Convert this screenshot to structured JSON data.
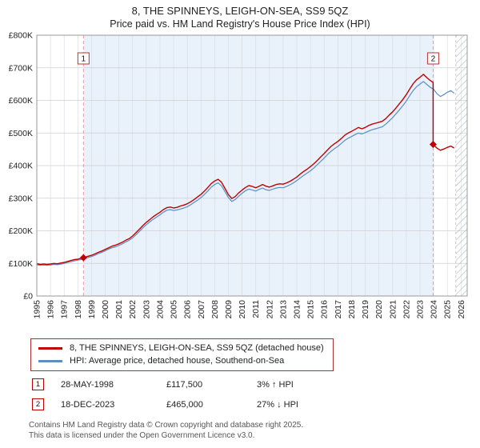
{
  "footer": [
    "Contains HM Land Registry data © Crown copyright and database right 2025.",
    "This data is licensed under the Open Government Licence v3.0."
  ],
  "chart_data": {
    "type": "line",
    "title": "8, THE SPINNEYS, LEIGH-ON-SEA, SS9 5QZ",
    "subtitle": "Price paid vs. HM Land Registry's House Price Index (HPI)",
    "y_unit": "thousands of GBP (£K)",
    "xlim": [
      1995,
      2026.45
    ],
    "ylim": [
      0,
      800
    ],
    "grid": true,
    "legend_position": "bottom",
    "hatch_start": 2025.62,
    "x_ticks": [
      1995,
      1996,
      1997,
      1998,
      1999,
      2000,
      2001,
      2002,
      2003,
      2004,
      2005,
      2006,
      2007,
      2008,
      2009,
      2010,
      2011,
      2012,
      2013,
      2014,
      2015,
      2016,
      2017,
      2018,
      2019,
      2020,
      2021,
      2022,
      2023,
      2024,
      2025,
      2026
    ],
    "y_ticks": [
      {
        "v": 0,
        "label": "£0"
      },
      {
        "v": 100,
        "label": "£100K"
      },
      {
        "v": 200,
        "label": "£200K"
      },
      {
        "v": 300,
        "label": "£300K"
      },
      {
        "v": 400,
        "label": "£400K"
      },
      {
        "v": 500,
        "label": "£500K"
      },
      {
        "v": 600,
        "label": "£600K"
      },
      {
        "v": 700,
        "label": "£700K"
      },
      {
        "v": 800,
        "label": "£800K"
      }
    ],
    "series": [
      {
        "name": "price_paid",
        "label": "8, THE SPINNEYS, LEIGH-ON-SEA, SS9 5QZ (detached house)",
        "color": "#c00000",
        "points": [
          [
            1995,
            99
          ],
          [
            1995.25,
            97
          ],
          [
            1995.5,
            98
          ],
          [
            1995.75,
            97
          ],
          [
            1996,
            98
          ],
          [
            1996.25,
            100
          ],
          [
            1996.5,
            99
          ],
          [
            1996.75,
            101
          ],
          [
            1997,
            103
          ],
          [
            1997.25,
            106
          ],
          [
            1997.5,
            109
          ],
          [
            1997.75,
            112
          ],
          [
            1998,
            113
          ],
          [
            1998.25,
            116
          ],
          [
            1998.41,
            117.5
          ],
          [
            1998.5,
            119
          ],
          [
            1998.75,
            122
          ],
          [
            1999,
            125
          ],
          [
            1999.25,
            129
          ],
          [
            1999.5,
            134
          ],
          [
            1999.75,
            138
          ],
          [
            2000,
            143
          ],
          [
            2000.25,
            148
          ],
          [
            2000.5,
            153
          ],
          [
            2000.75,
            156
          ],
          [
            2001,
            160
          ],
          [
            2001.25,
            165
          ],
          [
            2001.5,
            171
          ],
          [
            2001.75,
            176
          ],
          [
            2002,
            184
          ],
          [
            2002.25,
            194
          ],
          [
            2002.5,
            205
          ],
          [
            2002.75,
            216
          ],
          [
            2003,
            226
          ],
          [
            2003.25,
            234
          ],
          [
            2003.5,
            243
          ],
          [
            2003.75,
            250
          ],
          [
            2004,
            257
          ],
          [
            2004.25,
            265
          ],
          [
            2004.5,
            271
          ],
          [
            2004.75,
            273
          ],
          [
            2005,
            270
          ],
          [
            2005.25,
            272
          ],
          [
            2005.5,
            276
          ],
          [
            2005.75,
            279
          ],
          [
            2006,
            283
          ],
          [
            2006.25,
            289
          ],
          [
            2006.5,
            296
          ],
          [
            2006.75,
            304
          ],
          [
            2007,
            312
          ],
          [
            2007.25,
            322
          ],
          [
            2007.5,
            333
          ],
          [
            2007.75,
            345
          ],
          [
            2008,
            353
          ],
          [
            2008.25,
            358
          ],
          [
            2008.5,
            349
          ],
          [
            2008.75,
            330
          ],
          [
            2009,
            311
          ],
          [
            2009.25,
            299
          ],
          [
            2009.5,
            305
          ],
          [
            2009.75,
            316
          ],
          [
            2010,
            325
          ],
          [
            2010.25,
            333
          ],
          [
            2010.5,
            339
          ],
          [
            2010.75,
            336
          ],
          [
            2011,
            332
          ],
          [
            2011.25,
            337
          ],
          [
            2011.5,
            342
          ],
          [
            2011.75,
            337
          ],
          [
            2012,
            334
          ],
          [
            2012.25,
            338
          ],
          [
            2012.5,
            342
          ],
          [
            2012.75,
            344
          ],
          [
            2013,
            343
          ],
          [
            2013.25,
            347
          ],
          [
            2013.5,
            352
          ],
          [
            2013.75,
            358
          ],
          [
            2014,
            365
          ],
          [
            2014.25,
            374
          ],
          [
            2014.5,
            382
          ],
          [
            2014.75,
            389
          ],
          [
            2015,
            397
          ],
          [
            2015.25,
            406
          ],
          [
            2015.5,
            416
          ],
          [
            2015.75,
            427
          ],
          [
            2016,
            437
          ],
          [
            2016.25,
            448
          ],
          [
            2016.5,
            459
          ],
          [
            2016.75,
            467
          ],
          [
            2017,
            474
          ],
          [
            2017.25,
            483
          ],
          [
            2017.5,
            493
          ],
          [
            2017.75,
            500
          ],
          [
            2018,
            505
          ],
          [
            2018.25,
            511
          ],
          [
            2018.5,
            517
          ],
          [
            2018.75,
            513
          ],
          [
            2019,
            517
          ],
          [
            2019.25,
            523
          ],
          [
            2019.5,
            527
          ],
          [
            2019.75,
            530
          ],
          [
            2020,
            533
          ],
          [
            2020.25,
            536
          ],
          [
            2020.5,
            544
          ],
          [
            2020.75,
            555
          ],
          [
            2021,
            565
          ],
          [
            2021.25,
            577
          ],
          [
            2021.5,
            590
          ],
          [
            2021.75,
            603
          ],
          [
            2022,
            618
          ],
          [
            2022.25,
            635
          ],
          [
            2022.5,
            651
          ],
          [
            2022.75,
            663
          ],
          [
            2023,
            671
          ],
          [
            2023.25,
            680
          ],
          [
            2023.5,
            670
          ],
          [
            2023.75,
            661
          ],
          [
            2023.96,
            655
          ],
          [
            2023.96,
            465
          ],
          [
            2024,
            463
          ],
          [
            2024.25,
            453
          ],
          [
            2024.5,
            447
          ],
          [
            2024.75,
            451
          ],
          [
            2025,
            456
          ],
          [
            2025.25,
            460
          ],
          [
            2025.5,
            454
          ]
        ]
      },
      {
        "name": "hpi",
        "label": "HPI: Average price, detached house, Southend-on-Sea",
        "color": "#5b8ec4",
        "points": [
          [
            1995,
            96
          ],
          [
            1995.25,
            94
          ],
          [
            1995.5,
            95
          ],
          [
            1995.75,
            94
          ],
          [
            1996,
            95
          ],
          [
            1996.25,
            97
          ],
          [
            1996.5,
            96
          ],
          [
            1996.75,
            98
          ],
          [
            1997,
            100
          ],
          [
            1997.25,
            103
          ],
          [
            1997.5,
            105
          ],
          [
            1997.75,
            108
          ],
          [
            1998,
            110
          ],
          [
            1998.25,
            112
          ],
          [
            1998.5,
            115
          ],
          [
            1998.75,
            118
          ],
          [
            1999,
            121
          ],
          [
            1999.25,
            125
          ],
          [
            1999.5,
            130
          ],
          [
            1999.75,
            134
          ],
          [
            2000,
            139
          ],
          [
            2000.25,
            144
          ],
          [
            2000.5,
            148
          ],
          [
            2000.75,
            151
          ],
          [
            2001,
            155
          ],
          [
            2001.25,
            160
          ],
          [
            2001.5,
            166
          ],
          [
            2001.75,
            171
          ],
          [
            2002,
            178
          ],
          [
            2002.25,
            188
          ],
          [
            2002.5,
            198
          ],
          [
            2002.75,
            209
          ],
          [
            2003,
            219
          ],
          [
            2003.25,
            227
          ],
          [
            2003.5,
            235
          ],
          [
            2003.75,
            242
          ],
          [
            2004,
            249
          ],
          [
            2004.25,
            257
          ],
          [
            2004.5,
            263
          ],
          [
            2004.75,
            265
          ],
          [
            2005,
            262
          ],
          [
            2005.25,
            264
          ],
          [
            2005.5,
            267
          ],
          [
            2005.75,
            270
          ],
          [
            2006,
            274
          ],
          [
            2006.25,
            280
          ],
          [
            2006.5,
            287
          ],
          [
            2006.75,
            294
          ],
          [
            2007,
            302
          ],
          [
            2007.25,
            312
          ],
          [
            2007.5,
            322
          ],
          [
            2007.75,
            334
          ],
          [
            2008,
            342
          ],
          [
            2008.25,
            347
          ],
          [
            2008.5,
            338
          ],
          [
            2008.75,
            320
          ],
          [
            2009,
            302
          ],
          [
            2009.25,
            290
          ],
          [
            2009.5,
            296
          ],
          [
            2009.75,
            306
          ],
          [
            2010,
            315
          ],
          [
            2010.25,
            323
          ],
          [
            2010.5,
            328
          ],
          [
            2010.75,
            325
          ],
          [
            2011,
            322
          ],
          [
            2011.25,
            327
          ],
          [
            2011.5,
            331
          ],
          [
            2011.75,
            326
          ],
          [
            2012,
            324
          ],
          [
            2012.25,
            328
          ],
          [
            2012.5,
            331
          ],
          [
            2012.75,
            333
          ],
          [
            2013,
            332
          ],
          [
            2013.25,
            336
          ],
          [
            2013.5,
            341
          ],
          [
            2013.75,
            347
          ],
          [
            2014,
            354
          ],
          [
            2014.25,
            362
          ],
          [
            2014.5,
            370
          ],
          [
            2014.75,
            377
          ],
          [
            2015,
            384
          ],
          [
            2015.25,
            393
          ],
          [
            2015.5,
            403
          ],
          [
            2015.75,
            413
          ],
          [
            2016,
            423
          ],
          [
            2016.25,
            434
          ],
          [
            2016.5,
            444
          ],
          [
            2016.75,
            452
          ],
          [
            2017,
            459
          ],
          [
            2017.25,
            468
          ],
          [
            2017.5,
            477
          ],
          [
            2017.75,
            484
          ],
          [
            2018,
            489
          ],
          [
            2018.25,
            495
          ],
          [
            2018.5,
            500
          ],
          [
            2018.75,
            497
          ],
          [
            2019,
            501
          ],
          [
            2019.25,
            506
          ],
          [
            2019.5,
            510
          ],
          [
            2019.75,
            513
          ],
          [
            2020,
            516
          ],
          [
            2020.25,
            519
          ],
          [
            2020.5,
            527
          ],
          [
            2020.75,
            537
          ],
          [
            2021,
            547
          ],
          [
            2021.25,
            559
          ],
          [
            2021.5,
            571
          ],
          [
            2021.75,
            584
          ],
          [
            2022,
            598
          ],
          [
            2022.25,
            615
          ],
          [
            2022.5,
            630
          ],
          [
            2022.75,
            642
          ],
          [
            2023,
            650
          ],
          [
            2023.25,
            658
          ],
          [
            2023.5,
            649
          ],
          [
            2023.75,
            640
          ],
          [
            2024,
            634
          ],
          [
            2024.25,
            620
          ],
          [
            2024.5,
            612
          ],
          [
            2024.75,
            618
          ],
          [
            2025,
            625
          ],
          [
            2025.25,
            630
          ],
          [
            2025.5,
            622
          ]
        ]
      }
    ],
    "sales": [
      {
        "num": "1",
        "x": 1998.41,
        "y": 117.5,
        "date": "28-MAY-1998",
        "price": "£117,500",
        "vs_hpi": "3% ↑ HPI"
      },
      {
        "num": "2",
        "x": 2023.96,
        "y": 465,
        "date": "18-DEC-2023",
        "price": "£465,000",
        "vs_hpi": "27% ↓ HPI"
      }
    ]
  }
}
